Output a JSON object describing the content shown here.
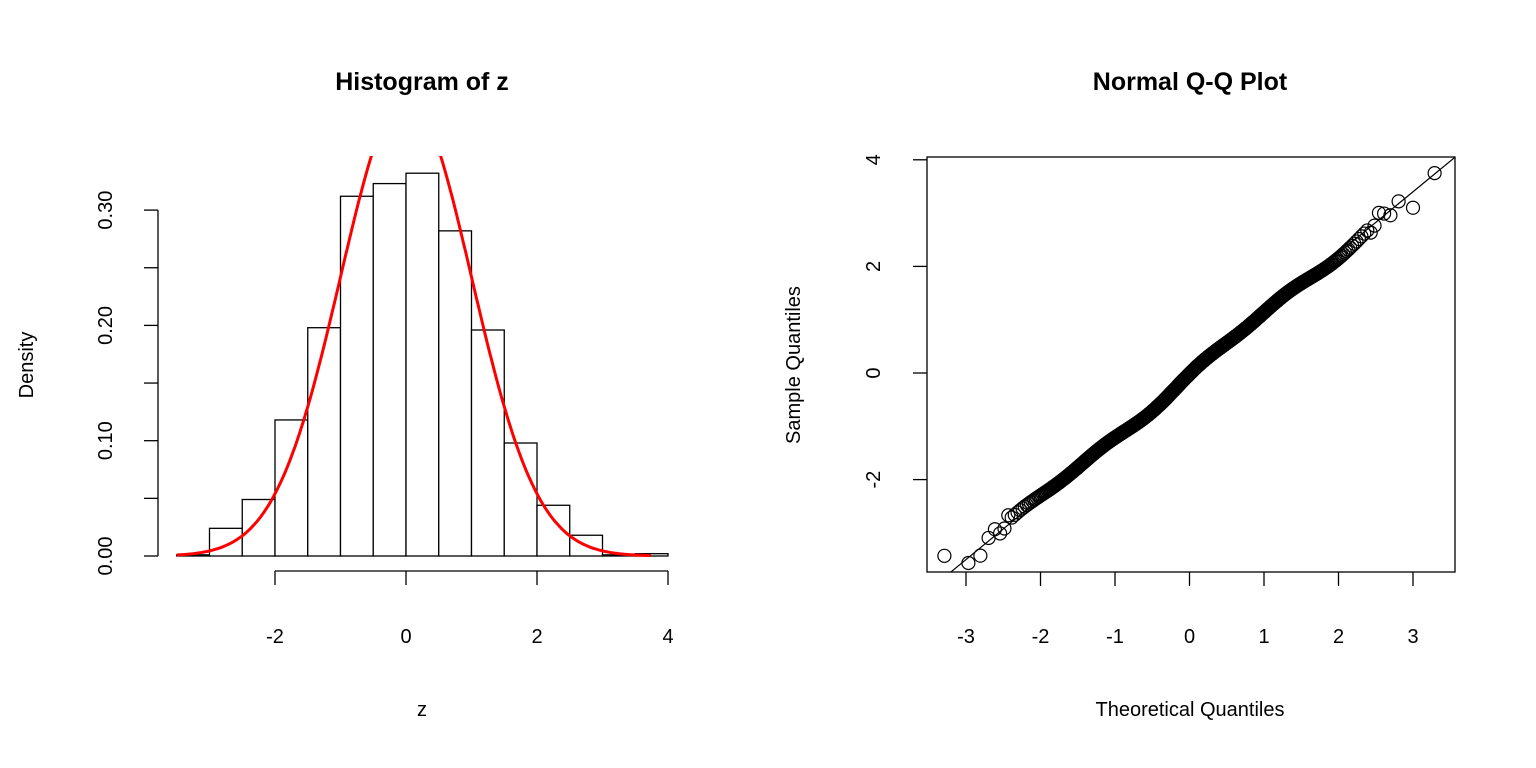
{
  "chart_data": [
    {
      "type": "bar",
      "title": "Histogram of z",
      "xlabel": "z",
      "ylabel": "Density",
      "bin_edges": [
        -3.5,
        -3,
        -2.5,
        -2,
        -1.5,
        -1,
        -0.5,
        0,
        0.5,
        1,
        1.5,
        2,
        2.5,
        3,
        3.5,
        4
      ],
      "values": [
        0.001,
        0.024,
        0.049,
        0.118,
        0.198,
        0.312,
        0.323,
        0.332,
        0.282,
        0.196,
        0.098,
        0.044,
        0.018,
        0.001,
        0.002
      ],
      "xlim": [
        -3.5,
        4
      ],
      "ylim": [
        0,
        0.345
      ],
      "xticks": [
        -2,
        0,
        2,
        4
      ],
      "xtick_labels": [
        "-2",
        "0",
        "2",
        "4"
      ],
      "yticks": [
        0,
        0.05,
        0.1,
        0.15,
        0.2,
        0.25,
        0.3
      ],
      "ytick_labels": [
        "0.00",
        "0.10",
        "0.20",
        "0.30"
      ],
      "ytick_label_values": [
        0,
        0.1,
        0.2,
        0.3
      ],
      "overlay": {
        "type": "line",
        "name": "normal density",
        "mean": 0,
        "sd": 1,
        "x_range": [
          -3.5,
          3.75
        ],
        "color": "#ff0000"
      },
      "bar_fill": "#ffffff",
      "bar_stroke": "#000000"
    },
    {
      "type": "scatter",
      "title": "Normal Q-Q Plot",
      "xlabel": "Theoretical Quantiles",
      "ylabel": "Sample Quantiles",
      "n": 1000,
      "xlim": [
        -3.52,
        3.56
      ],
      "ylim": [
        -3.73,
        4.06
      ],
      "xticks": [
        -3,
        -2,
        -1,
        0,
        1,
        2,
        3
      ],
      "xtick_labels": [
        "-3",
        "-2",
        "-1",
        "0",
        "1",
        "2",
        "3"
      ],
      "yticks": [
        -2,
        0,
        2,
        4
      ],
      "ytick_labels": [
        "-2",
        "0",
        "2",
        "4"
      ],
      "reference_line": {
        "intercept": -0.05,
        "slope": 1.15
      },
      "extreme_points": [
        [
          -3.29,
          -3.43
        ],
        [
          3.0,
          3.1
        ],
        [
          3.29,
          3.75
        ]
      ]
    }
  ]
}
